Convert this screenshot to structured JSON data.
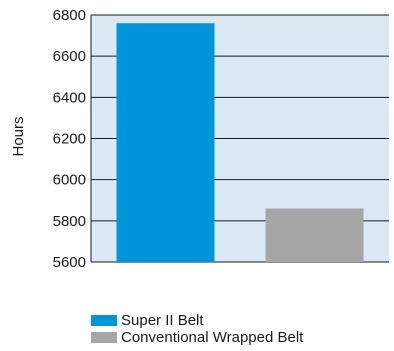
{
  "chart_data": {
    "type": "bar",
    "categories": [
      "Super II Belt",
      "Conventional Wrapped Belt"
    ],
    "values": [
      6760,
      5860
    ],
    "ylabel": "Hours",
    "xlabel": "",
    "ylim": [
      5600,
      6800
    ],
    "yticks": [
      5600,
      5800,
      6000,
      6200,
      6400,
      6600,
      6800
    ],
    "grid": true,
    "legend_position": "bottom",
    "colors": {
      "bars": [
        "#0095da",
        "#a6a6a6"
      ],
      "plot_background": "#dbe9f5",
      "grid": "#1a1a1a"
    }
  },
  "legend": {
    "items": [
      {
        "label": "Super II Belt"
      },
      {
        "label": "Conventional Wrapped Belt"
      }
    ]
  }
}
